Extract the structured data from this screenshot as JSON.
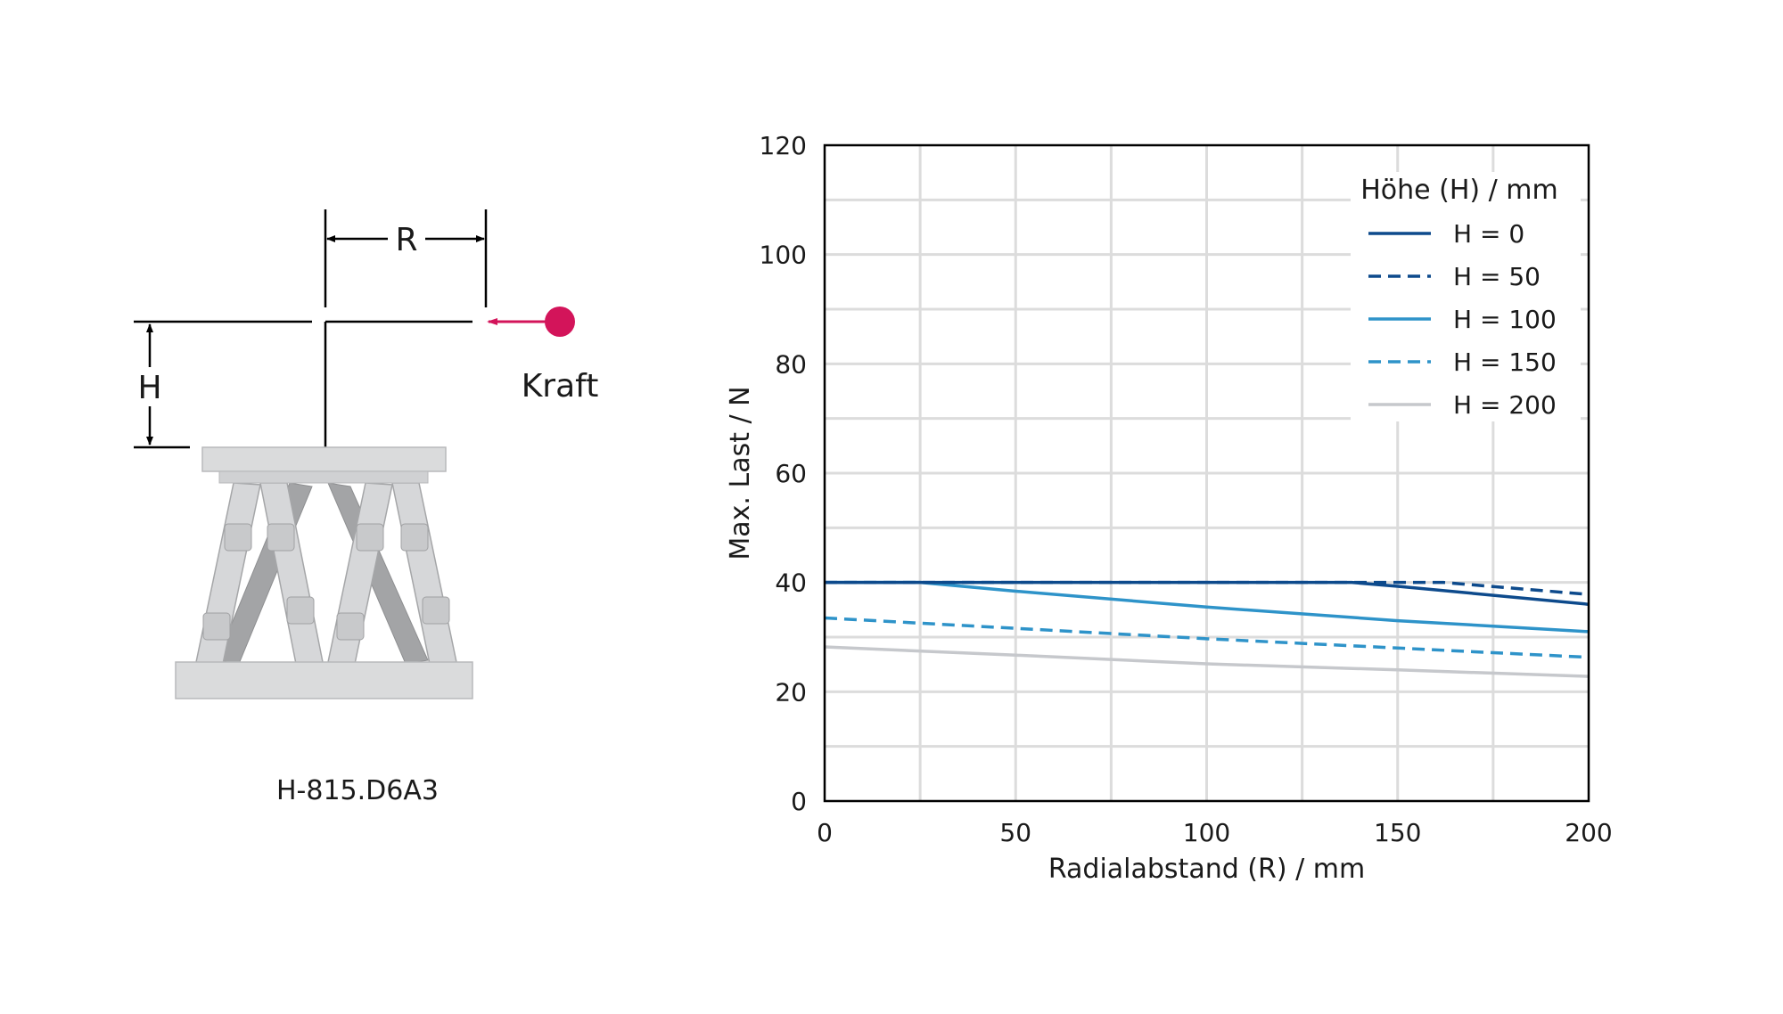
{
  "diagram": {
    "label_r": "R",
    "label_h": "H",
    "label_force": "Kraft",
    "model": "H-815.D6A3",
    "colors": {
      "force": "#d3145a",
      "platform": "#dadbdc",
      "platform_edge": "#b8b9bb",
      "strut": "#cfd0d2",
      "strut_dark": "#a3a4a6"
    }
  },
  "chart_data": {
    "type": "line",
    "xlabel": "Radialabstand (R) / mm",
    "ylabel": "Max. Last / N",
    "xlim": [
      0,
      200
    ],
    "ylim": [
      0,
      120
    ],
    "xticks": [
      0,
      50,
      100,
      150,
      200
    ],
    "yticks": [
      0,
      20,
      40,
      60,
      80,
      100,
      120
    ],
    "grid": true,
    "legend_title": "Höhe (H) / mm",
    "legend_position": "top-right",
    "series": [
      {
        "name": "H = 0",
        "color": "#0d4a8c",
        "dashed": false,
        "x": [
          0,
          25,
          50,
          100,
          138,
          150,
          200
        ],
        "y": [
          40,
          40,
          40,
          40,
          40,
          39.3,
          36
        ]
      },
      {
        "name": "H = 50",
        "color": "#0d4a8c",
        "dashed": true,
        "x": [
          0,
          25,
          50,
          100,
          150,
          162,
          200
        ],
        "y": [
          40,
          40,
          40,
          40,
          40,
          40,
          37.8
        ]
      },
      {
        "name": "H = 100",
        "color": "#2e93c9",
        "dashed": false,
        "x": [
          0,
          25,
          50,
          100,
          150,
          200
        ],
        "y": [
          40,
          40,
          38.4,
          35.5,
          33,
          31
        ]
      },
      {
        "name": "H = 150",
        "color": "#2e93c9",
        "dashed": true,
        "x": [
          0,
          50,
          100,
          150,
          200
        ],
        "y": [
          33.5,
          31.6,
          29.7,
          28,
          26.3
        ]
      },
      {
        "name": "H = 200",
        "color": "#c6c8cc",
        "dashed": false,
        "x": [
          0,
          50,
          100,
          150,
          200
        ],
        "y": [
          28.2,
          26.7,
          25.1,
          24,
          22.8
        ]
      }
    ]
  }
}
